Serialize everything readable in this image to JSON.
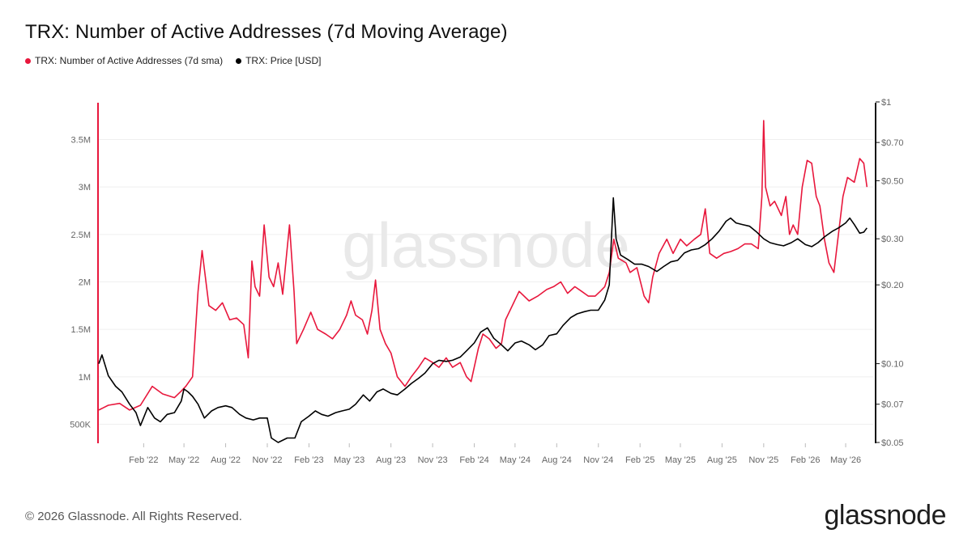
{
  "title": "TRX: Number of Active Addresses (7d Moving Average)",
  "footer": "© 2026 Glassnode. All Rights Reserved.",
  "brand": "glassnode",
  "watermark": "glassnode",
  "legend": [
    {
      "label": "TRX: Number of Active Addresses (7d sma)",
      "color": "#e8173c"
    },
    {
      "label": "TRX: Price [USD]",
      "color": "#000000"
    }
  ],
  "chart_data": {
    "type": "line",
    "x_range": [
      "2021-10-25",
      "2026-06-20"
    ],
    "x_ticks": [
      "Feb '22",
      "May '22",
      "Aug '22",
      "Nov '22",
      "Feb '23",
      "May '23",
      "Aug '23",
      "Nov '23",
      "Feb '24",
      "May '24",
      "Aug '24",
      "Nov '24",
      "Feb '25",
      "May '25",
      "Aug '25",
      "Nov '25",
      "Feb '26",
      "May '26"
    ],
    "x_tick_dates": [
      "2022-02-01",
      "2022-05-01",
      "2022-08-01",
      "2022-11-01",
      "2023-02-01",
      "2023-05-01",
      "2023-08-01",
      "2023-11-01",
      "2024-02-01",
      "2024-05-01",
      "2024-08-01",
      "2024-11-01",
      "2025-02-01",
      "2025-05-01",
      "2025-08-01",
      "2025-11-01",
      "2026-02-01",
      "2026-05-01"
    ],
    "y_left": {
      "label": "",
      "ticks": [
        500000,
        1000000,
        1500000,
        2000000,
        2500000,
        3000000,
        3500000
      ],
      "tick_labels": [
        "500K",
        "1M",
        "1.5M",
        "2M",
        "2.5M",
        "3M",
        "3.5M"
      ],
      "range": [
        400000,
        3800000
      ],
      "color": "#e8173c"
    },
    "y_right": {
      "label": "",
      "scale": "log",
      "ticks": [
        0.05,
        0.07,
        0.1,
        0.2,
        0.3,
        0.5,
        0.7,
        1
      ],
      "tick_labels": [
        "$0.05",
        "$0.07",
        "$0.10",
        "$0.20",
        "$0.30",
        "$0.50",
        "$0.70",
        "$1"
      ],
      "range": [
        0.05,
        1.0
      ]
    },
    "grid": true,
    "series": [
      {
        "name": "TRX: Number of Active Addresses (7d sma)",
        "color": "#e8173c",
        "axis": "left",
        "points": [
          [
            "2021-10-25",
            650000
          ],
          [
            "2021-11-15",
            700000
          ],
          [
            "2021-12-10",
            720000
          ],
          [
            "2022-01-01",
            650000
          ],
          [
            "2022-01-25",
            700000
          ],
          [
            "2022-02-20",
            900000
          ],
          [
            "2022-03-15",
            820000
          ],
          [
            "2022-04-10",
            780000
          ],
          [
            "2022-04-25",
            850000
          ],
          [
            "2022-05-05",
            900000
          ],
          [
            "2022-05-20",
            1000000
          ],
          [
            "2022-06-01",
            1900000
          ],
          [
            "2022-06-10",
            2330000
          ],
          [
            "2022-06-25",
            1750000
          ],
          [
            "2022-07-10",
            1700000
          ],
          [
            "2022-07-25",
            1780000
          ],
          [
            "2022-08-10",
            1600000
          ],
          [
            "2022-08-25",
            1620000
          ],
          [
            "2022-09-10",
            1550000
          ],
          [
            "2022-09-20",
            1200000
          ],
          [
            "2022-09-28",
            2220000
          ],
          [
            "2022-10-05",
            1950000
          ],
          [
            "2022-10-15",
            1850000
          ],
          [
            "2022-10-25",
            2600000
          ],
          [
            "2022-11-05",
            2050000
          ],
          [
            "2022-11-15",
            1950000
          ],
          [
            "2022-11-25",
            2200000
          ],
          [
            "2022-12-05",
            1870000
          ],
          [
            "2022-12-20",
            2600000
          ],
          [
            "2022-12-30",
            1900000
          ],
          [
            "2023-01-05",
            1350000
          ],
          [
            "2023-01-20",
            1500000
          ],
          [
            "2023-02-05",
            1680000
          ],
          [
            "2023-02-20",
            1500000
          ],
          [
            "2023-03-10",
            1450000
          ],
          [
            "2023-03-25",
            1400000
          ],
          [
            "2023-04-10",
            1500000
          ],
          [
            "2023-04-25",
            1650000
          ],
          [
            "2023-05-05",
            1800000
          ],
          [
            "2023-05-15",
            1650000
          ],
          [
            "2023-05-30",
            1600000
          ],
          [
            "2023-06-10",
            1450000
          ],
          [
            "2023-06-20",
            1700000
          ],
          [
            "2023-06-28",
            2020000
          ],
          [
            "2023-07-08",
            1500000
          ],
          [
            "2023-07-20",
            1350000
          ],
          [
            "2023-08-01",
            1250000
          ],
          [
            "2023-08-15",
            1000000
          ],
          [
            "2023-09-01",
            900000
          ],
          [
            "2023-09-15",
            1000000
          ],
          [
            "2023-10-01",
            1100000
          ],
          [
            "2023-10-15",
            1200000
          ],
          [
            "2023-11-01",
            1150000
          ],
          [
            "2023-11-15",
            1100000
          ],
          [
            "2023-12-01",
            1200000
          ],
          [
            "2023-12-15",
            1100000
          ],
          [
            "2024-01-01",
            1150000
          ],
          [
            "2024-01-15",
            1000000
          ],
          [
            "2024-01-25",
            950000
          ],
          [
            "2024-02-10",
            1300000
          ],
          [
            "2024-02-20",
            1450000
          ],
          [
            "2024-03-05",
            1400000
          ],
          [
            "2024-03-20",
            1300000
          ],
          [
            "2024-04-01",
            1350000
          ],
          [
            "2024-04-10",
            1600000
          ],
          [
            "2024-04-25",
            1750000
          ],
          [
            "2024-05-10",
            1900000
          ],
          [
            "2024-06-01",
            1800000
          ],
          [
            "2024-06-20",
            1850000
          ],
          [
            "2024-07-10",
            1920000
          ],
          [
            "2024-07-25",
            1950000
          ],
          [
            "2024-08-10",
            2000000
          ],
          [
            "2024-08-25",
            1880000
          ],
          [
            "2024-09-10",
            1950000
          ],
          [
            "2024-09-25",
            1900000
          ],
          [
            "2024-10-10",
            1850000
          ],
          [
            "2024-10-25",
            1850000
          ],
          [
            "2024-11-05",
            1900000
          ],
          [
            "2024-11-15",
            1950000
          ],
          [
            "2024-11-25",
            2100000
          ],
          [
            "2024-12-05",
            2450000
          ],
          [
            "2024-12-15",
            2250000
          ],
          [
            "2025-01-01",
            2200000
          ],
          [
            "2025-01-10",
            2100000
          ],
          [
            "2025-01-25",
            2150000
          ],
          [
            "2025-02-10",
            1850000
          ],
          [
            "2025-02-20",
            1780000
          ],
          [
            "2025-03-01",
            2050000
          ],
          [
            "2025-03-15",
            2300000
          ],
          [
            "2025-04-01",
            2450000
          ],
          [
            "2025-04-15",
            2300000
          ],
          [
            "2025-05-01",
            2450000
          ],
          [
            "2025-05-15",
            2380000
          ],
          [
            "2025-06-01",
            2450000
          ],
          [
            "2025-06-15",
            2500000
          ],
          [
            "2025-06-25",
            2770000
          ],
          [
            "2025-07-05",
            2300000
          ],
          [
            "2025-07-20",
            2250000
          ],
          [
            "2025-08-05",
            2300000
          ],
          [
            "2025-08-20",
            2320000
          ],
          [
            "2025-09-05",
            2350000
          ],
          [
            "2025-09-20",
            2400000
          ],
          [
            "2025-10-05",
            2400000
          ],
          [
            "2025-10-20",
            2350000
          ],
          [
            "2025-10-28",
            2900000
          ],
          [
            "2025-11-01",
            3700000
          ],
          [
            "2025-11-05",
            3000000
          ],
          [
            "2025-11-15",
            2800000
          ],
          [
            "2025-11-25",
            2850000
          ],
          [
            "2025-12-10",
            2700000
          ],
          [
            "2025-12-20",
            2900000
          ],
          [
            "2025-12-28",
            2500000
          ],
          [
            "2026-01-05",
            2600000
          ],
          [
            "2026-01-15",
            2500000
          ],
          [
            "2026-01-25",
            3000000
          ],
          [
            "2026-02-05",
            3280000
          ],
          [
            "2026-02-15",
            3250000
          ],
          [
            "2026-02-25",
            2900000
          ],
          [
            "2026-03-05",
            2800000
          ],
          [
            "2026-03-15",
            2450000
          ],
          [
            "2026-03-25",
            2200000
          ],
          [
            "2026-04-05",
            2100000
          ],
          [
            "2026-04-15",
            2500000
          ],
          [
            "2026-04-25",
            2900000
          ],
          [
            "2026-05-05",
            3100000
          ],
          [
            "2026-05-20",
            3050000
          ],
          [
            "2026-06-01",
            3300000
          ],
          [
            "2026-06-10",
            3250000
          ],
          [
            "2026-06-17",
            3000000
          ]
        ]
      },
      {
        "name": "TRX: Price [USD]",
        "color": "#000000",
        "axis": "right",
        "points": [
          [
            "2021-10-25",
            0.1
          ],
          [
            "2021-11-01",
            0.108
          ],
          [
            "2021-11-15",
            0.09
          ],
          [
            "2021-12-01",
            0.082
          ],
          [
            "2021-12-15",
            0.078
          ],
          [
            "2022-01-01",
            0.07
          ],
          [
            "2022-01-15",
            0.065
          ],
          [
            "2022-01-25",
            0.058
          ],
          [
            "2022-02-10",
            0.068
          ],
          [
            "2022-02-25",
            0.062
          ],
          [
            "2022-03-10",
            0.06
          ],
          [
            "2022-03-25",
            0.064
          ],
          [
            "2022-04-10",
            0.065
          ],
          [
            "2022-04-25",
            0.072
          ],
          [
            "2022-05-01",
            0.08
          ],
          [
            "2022-05-10",
            0.078
          ],
          [
            "2022-05-20",
            0.075
          ],
          [
            "2022-06-01",
            0.07
          ],
          [
            "2022-06-15",
            0.062
          ],
          [
            "2022-07-01",
            0.066
          ],
          [
            "2022-07-15",
            0.068
          ],
          [
            "2022-08-01",
            0.069
          ],
          [
            "2022-08-15",
            0.068
          ],
          [
            "2022-09-01",
            0.064
          ],
          [
            "2022-09-15",
            0.062
          ],
          [
            "2022-10-01",
            0.061
          ],
          [
            "2022-10-15",
            0.062
          ],
          [
            "2022-11-01",
            0.062
          ],
          [
            "2022-11-10",
            0.052
          ],
          [
            "2022-11-25",
            0.05
          ],
          [
            "2022-12-15",
            0.052
          ],
          [
            "2023-01-01",
            0.052
          ],
          [
            "2023-01-15",
            0.06
          ],
          [
            "2023-02-01",
            0.063
          ],
          [
            "2023-02-15",
            0.066
          ],
          [
            "2023-03-01",
            0.064
          ],
          [
            "2023-03-15",
            0.063
          ],
          [
            "2023-04-01",
            0.065
          ],
          [
            "2023-04-15",
            0.066
          ],
          [
            "2023-05-01",
            0.067
          ],
          [
            "2023-05-15",
            0.07
          ],
          [
            "2023-06-01",
            0.076
          ],
          [
            "2023-06-15",
            0.072
          ],
          [
            "2023-07-01",
            0.078
          ],
          [
            "2023-07-15",
            0.08
          ],
          [
            "2023-08-01",
            0.077
          ],
          [
            "2023-08-15",
            0.076
          ],
          [
            "2023-09-01",
            0.08
          ],
          [
            "2023-09-15",
            0.084
          ],
          [
            "2023-10-01",
            0.088
          ],
          [
            "2023-10-15",
            0.092
          ],
          [
            "2023-11-01",
            0.1
          ],
          [
            "2023-11-15",
            0.103
          ],
          [
            "2023-12-01",
            0.102
          ],
          [
            "2023-12-15",
            0.103
          ],
          [
            "2024-01-01",
            0.106
          ],
          [
            "2024-01-15",
            0.112
          ],
          [
            "2024-02-01",
            0.12
          ],
          [
            "2024-02-15",
            0.132
          ],
          [
            "2024-03-01",
            0.137
          ],
          [
            "2024-03-15",
            0.125
          ],
          [
            "2024-04-01",
            0.118
          ],
          [
            "2024-04-15",
            0.112
          ],
          [
            "2024-05-01",
            0.12
          ],
          [
            "2024-05-15",
            0.122
          ],
          [
            "2024-06-01",
            0.118
          ],
          [
            "2024-06-15",
            0.113
          ],
          [
            "2024-07-01",
            0.118
          ],
          [
            "2024-07-15",
            0.128
          ],
          [
            "2024-08-01",
            0.13
          ],
          [
            "2024-08-15",
            0.14
          ],
          [
            "2024-09-01",
            0.15
          ],
          [
            "2024-09-15",
            0.155
          ],
          [
            "2024-10-01",
            0.158
          ],
          [
            "2024-10-15",
            0.16
          ],
          [
            "2024-11-01",
            0.16
          ],
          [
            "2024-11-15",
            0.175
          ],
          [
            "2024-11-25",
            0.2
          ],
          [
            "2024-12-04",
            0.43
          ],
          [
            "2024-12-10",
            0.3
          ],
          [
            "2024-12-20",
            0.26
          ],
          [
            "2025-01-05",
            0.25
          ],
          [
            "2025-01-20",
            0.24
          ],
          [
            "2025-02-05",
            0.24
          ],
          [
            "2025-02-20",
            0.235
          ],
          [
            "2025-03-10",
            0.225
          ],
          [
            "2025-03-25",
            0.235
          ],
          [
            "2025-04-10",
            0.245
          ],
          [
            "2025-04-25",
            0.248
          ],
          [
            "2025-05-10",
            0.265
          ],
          [
            "2025-05-25",
            0.272
          ],
          [
            "2025-06-10",
            0.275
          ],
          [
            "2025-06-25",
            0.285
          ],
          [
            "2025-07-10",
            0.3
          ],
          [
            "2025-07-25",
            0.32
          ],
          [
            "2025-08-10",
            0.35
          ],
          [
            "2025-08-20",
            0.36
          ],
          [
            "2025-09-01",
            0.345
          ],
          [
            "2025-09-15",
            0.34
          ],
          [
            "2025-10-01",
            0.335
          ],
          [
            "2025-10-15",
            0.32
          ],
          [
            "2025-11-01",
            0.3
          ],
          [
            "2025-11-15",
            0.29
          ],
          [
            "2025-12-01",
            0.285
          ],
          [
            "2025-12-15",
            0.282
          ],
          [
            "2026-01-01",
            0.29
          ],
          [
            "2026-01-15",
            0.3
          ],
          [
            "2026-02-01",
            0.285
          ],
          [
            "2026-02-15",
            0.28
          ],
          [
            "2026-03-01",
            0.29
          ],
          [
            "2026-03-15",
            0.305
          ],
          [
            "2026-04-01",
            0.32
          ],
          [
            "2026-04-15",
            0.33
          ],
          [
            "2026-05-01",
            0.345
          ],
          [
            "2026-05-10",
            0.36
          ],
          [
            "2026-05-20",
            0.34
          ],
          [
            "2026-06-01",
            0.315
          ],
          [
            "2026-06-10",
            0.318
          ],
          [
            "2026-06-17",
            0.33
          ]
        ]
      }
    ]
  }
}
